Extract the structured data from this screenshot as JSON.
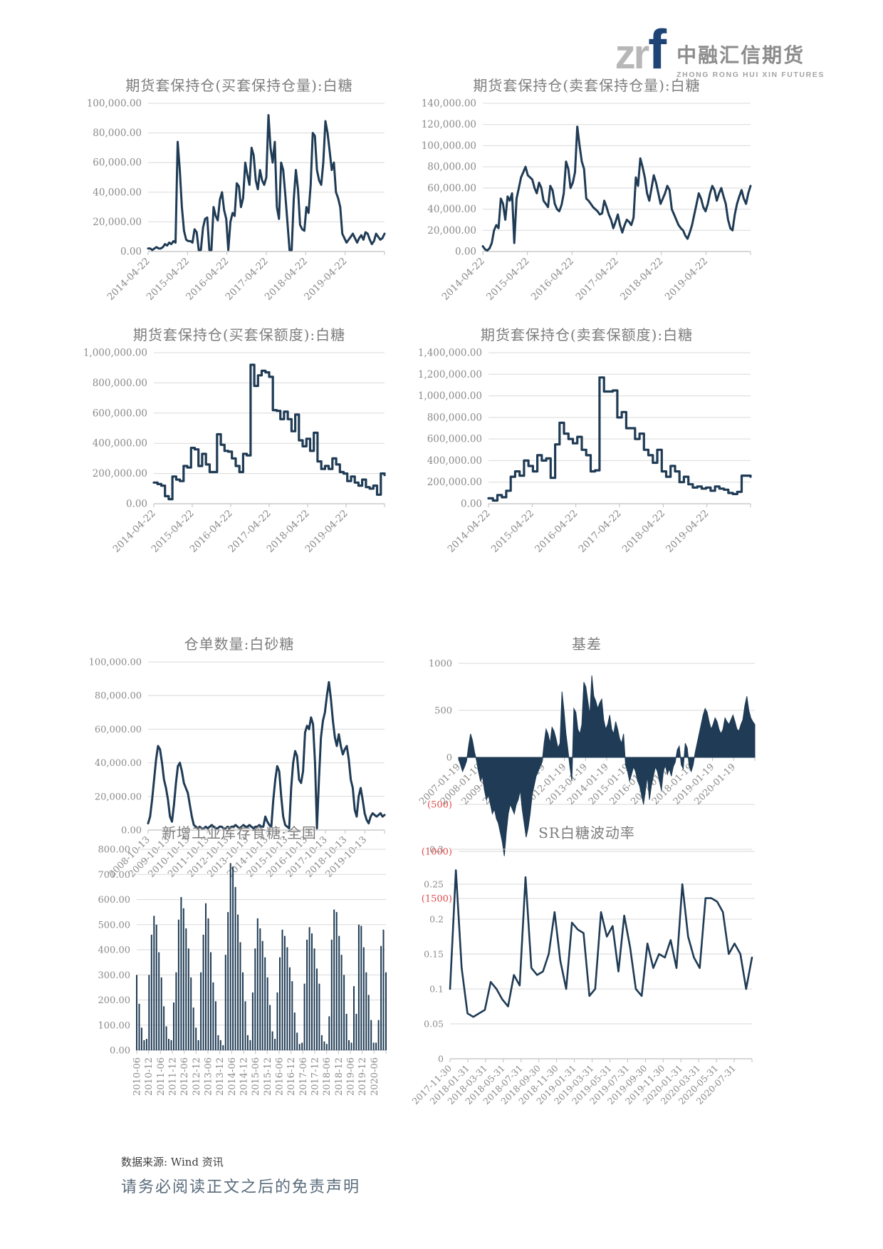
{
  "logo": {
    "zr": "zr",
    "f": "f",
    "cn": "中融汇信期货",
    "en": "ZHONG RONG HUI XIN FUTURES"
  },
  "footer": {
    "source": "数据来源: Wind 资讯",
    "disclaimer": "请务必阅读正文之后的免责声明"
  },
  "colors": {
    "series": "#1f3b55",
    "grid": "#d9d9d9",
    "axis": "#bfbfbf",
    "tick_label": "#8a8a8a",
    "negative_label": "#e04b4b",
    "title": "#7d7d7d"
  },
  "chart_data": [
    {
      "type": "line",
      "title": "期货套保持仓(买套保持仓量):白糖",
      "xlabel": "",
      "ylabel": "",
      "grid": true,
      "legend": "none",
      "ylim": [
        0,
        100000
      ],
      "y_ticks": [
        {
          "v": 0,
          "t": "0.00"
        },
        {
          "v": 20000,
          "t": "20,000.00"
        },
        {
          "v": 40000,
          "t": "40,000.00"
        },
        {
          "v": 60000,
          "t": "60,000.00"
        },
        {
          "v": 80000,
          "t": "80,000.00"
        },
        {
          "v": 100000,
          "t": "100,000.00"
        }
      ],
      "x_labels": [
        "2014-04-22",
        "2015-04-22",
        "2016-04-22",
        "2017-04-22",
        "2018-04-22",
        "2019-04-22"
      ],
      "values": [
        2000,
        2000,
        1000,
        2000,
        3000,
        2000,
        2000,
        3000,
        5000,
        4000,
        6000,
        5000,
        7000,
        6000,
        74000,
        55000,
        30000,
        14000,
        8000,
        7000,
        7000,
        6000,
        15000,
        13000,
        1000,
        1000,
        16000,
        22000,
        23000,
        1000,
        1000,
        30000,
        24000,
        21000,
        35000,
        40000,
        28000,
        22000,
        1000,
        20000,
        26000,
        24000,
        46000,
        44000,
        30000,
        36000,
        60000,
        52000,
        45000,
        70000,
        65000,
        48000,
        42000,
        55000,
        48000,
        45000,
        50000,
        92000,
        70000,
        60000,
        74000,
        30000,
        22000,
        60000,
        55000,
        38000,
        20000,
        1000,
        1000,
        35000,
        55000,
        42000,
        18000,
        15000,
        14000,
        30000,
        26000,
        45000,
        80000,
        78000,
        55000,
        48000,
        45000,
        60000,
        88000,
        80000,
        68000,
        55000,
        60000,
        40000,
        36000,
        30000,
        12000,
        9000,
        6000,
        8000,
        10000,
        12000,
        9000,
        6000,
        9000,
        11000,
        8000,
        13000,
        12000,
        8000,
        5000,
        7000,
        12000,
        10000,
        8000,
        9000,
        12000
      ]
    },
    {
      "type": "line",
      "title": "期货套保持仓(卖套保持仓量):白糖",
      "xlabel": "",
      "ylabel": "",
      "grid": true,
      "legend": "none",
      "ylim": [
        0,
        140000
      ],
      "y_ticks": [
        {
          "v": 0,
          "t": "0.00"
        },
        {
          "v": 20000,
          "t": "20,000.00"
        },
        {
          "v": 40000,
          "t": "40,000.00"
        },
        {
          "v": 60000,
          "t": "60,000.00"
        },
        {
          "v": 80000,
          "t": "80,000.00"
        },
        {
          "v": 100000,
          "t": "100,000.00"
        },
        {
          "v": 120000,
          "t": "120,000.00"
        },
        {
          "v": 140000,
          "t": "140,000.00"
        }
      ],
      "x_labels": [
        "2014-04-22",
        "2015-04-22",
        "2016-04-22",
        "2017-04-22",
        "2018-04-22",
        "2019-04-22"
      ],
      "values": [
        5000,
        2000,
        1000,
        3000,
        8000,
        20000,
        25000,
        22000,
        50000,
        45000,
        30000,
        52000,
        48000,
        55000,
        8000,
        50000,
        60000,
        70000,
        75000,
        80000,
        72000,
        70000,
        68000,
        60000,
        55000,
        65000,
        60000,
        48000,
        45000,
        42000,
        62000,
        58000,
        45000,
        40000,
        38000,
        44000,
        55000,
        85000,
        78000,
        60000,
        65000,
        75000,
        118000,
        100000,
        85000,
        78000,
        50000,
        48000,
        45000,
        42000,
        40000,
        38000,
        35000,
        36000,
        48000,
        42000,
        35000,
        30000,
        22000,
        28000,
        35000,
        25000,
        18000,
        25000,
        30000,
        28000,
        25000,
        32000,
        70000,
        62000,
        88000,
        80000,
        70000,
        55000,
        48000,
        60000,
        72000,
        65000,
        55000,
        45000,
        50000,
        55000,
        62000,
        58000,
        40000,
        35000,
        30000,
        25000,
        22000,
        20000,
        15000,
        12000,
        18000,
        25000,
        35000,
        45000,
        55000,
        50000,
        42000,
        38000,
        45000,
        55000,
        62000,
        58000,
        48000,
        55000,
        60000,
        52000,
        45000,
        30000,
        22000,
        20000,
        35000,
        45000,
        52000,
        58000,
        50000,
        45000,
        55000,
        62000
      ]
    },
    {
      "type": "line",
      "step": true,
      "title": "期货套保持仓(买套保额度):白糖",
      "xlabel": "",
      "ylabel": "",
      "grid": true,
      "legend": "none",
      "ylim": [
        0,
        1000000
      ],
      "y_ticks": [
        {
          "v": 0,
          "t": "0.00"
        },
        {
          "v": 200000,
          "t": "200,000.00"
        },
        {
          "v": 400000,
          "t": "400,000.00"
        },
        {
          "v": 600000,
          "t": "600,000.00"
        },
        {
          "v": 800000,
          "t": "800,000.00"
        },
        {
          "v": 1000000,
          "t": "1,000,000.00"
        }
      ],
      "x_labels": [
        "2014-04-22",
        "2015-04-22",
        "2016-04-22",
        "2017-04-22",
        "2018-04-22",
        "2019-04-22"
      ],
      "values": [
        140000,
        130000,
        120000,
        50000,
        30000,
        180000,
        160000,
        150000,
        250000,
        240000,
        370000,
        360000,
        250000,
        330000,
        260000,
        210000,
        210000,
        460000,
        390000,
        350000,
        345000,
        300000,
        250000,
        210000,
        330000,
        320000,
        920000,
        780000,
        850000,
        880000,
        870000,
        840000,
        620000,
        615000,
        560000,
        610000,
        560000,
        480000,
        590000,
        420000,
        380000,
        430000,
        350000,
        470000,
        280000,
        230000,
        250000,
        230000,
        300000,
        260000,
        210000,
        200000,
        150000,
        180000,
        140000,
        120000,
        160000,
        110000,
        100000,
        120000,
        60000,
        200000,
        190000
      ]
    },
    {
      "type": "line",
      "step": true,
      "title": "期货套保持仓(卖套保额度):白糖",
      "xlabel": "",
      "ylabel": "",
      "grid": true,
      "legend": "none",
      "ylim": [
        0,
        1400000
      ],
      "y_ticks": [
        {
          "v": 0,
          "t": "0.00"
        },
        {
          "v": 200000,
          "t": "200,000.00"
        },
        {
          "v": 400000,
          "t": "400,000.00"
        },
        {
          "v": 600000,
          "t": "600,000.00"
        },
        {
          "v": 800000,
          "t": "800,000.00"
        },
        {
          "v": 1000000,
          "t": "1,000,000.00"
        },
        {
          "v": 1200000,
          "t": "1,200,000.00"
        },
        {
          "v": 1400000,
          "t": "1,400,000.00"
        }
      ],
      "x_labels": [
        "2014-04-22",
        "2015-04-22",
        "2016-04-22",
        "2017-04-22",
        "2018-04-22",
        "2019-04-22"
      ],
      "values": [
        50000,
        30000,
        80000,
        60000,
        120000,
        250000,
        300000,
        260000,
        400000,
        350000,
        300000,
        450000,
        400000,
        420000,
        240000,
        550000,
        750000,
        650000,
        600000,
        560000,
        620000,
        500000,
        450000,
        300000,
        310000,
        1170000,
        1040000,
        1040000,
        1050000,
        800000,
        850000,
        700000,
        700000,
        600000,
        650000,
        500000,
        450000,
        380000,
        500000,
        300000,
        250000,
        350000,
        300000,
        200000,
        250000,
        180000,
        150000,
        160000,
        140000,
        150000,
        120000,
        160000,
        140000,
        130000,
        100000,
        90000,
        110000,
        260000,
        260000,
        250000
      ]
    },
    {
      "type": "line",
      "title": "仓单数量:白砂糖",
      "xlabel": "",
      "ylabel": "",
      "grid": true,
      "legend": "none",
      "ylim": [
        0,
        100000
      ],
      "y_ticks": [
        {
          "v": 0,
          "t": "0.00"
        },
        {
          "v": 20000,
          "t": "20,000.00"
        },
        {
          "v": 40000,
          "t": "40,000.00"
        },
        {
          "v": 60000,
          "t": "60,000.00"
        },
        {
          "v": 80000,
          "t": "80,000.00"
        },
        {
          "v": 100000,
          "t": "100,000.00"
        }
      ],
      "x_labels": [
        "2008-10-13",
        "2009-10-13",
        "2010-10-13",
        "2011-10-13",
        "2012-10-13",
        "2013-10-13",
        "2014-10-13",
        "2015-10-13",
        "2016-10-13",
        "2017-10-13",
        "2018-10-13",
        "2019-10-13"
      ],
      "values": [
        4000,
        8000,
        18000,
        30000,
        42000,
        50000,
        48000,
        40000,
        30000,
        25000,
        18000,
        8000,
        5000,
        15000,
        28000,
        38000,
        40000,
        35000,
        28000,
        25000,
        22000,
        15000,
        8000,
        3000,
        2000,
        1000,
        2000,
        1000,
        1000,
        2000,
        1000,
        2000,
        3000,
        2000,
        1000,
        1000,
        2000,
        2000,
        1000,
        1000,
        2000,
        1000,
        2000,
        2000,
        3000,
        2000,
        1000,
        2000,
        3000,
        2000,
        2000,
        3000,
        2000,
        1000,
        2000,
        2000,
        3000,
        2000,
        2000,
        8000,
        5000,
        3000,
        2000,
        18000,
        30000,
        38000,
        35000,
        20000,
        8000,
        3000,
        2000,
        1000,
        25000,
        40000,
        47000,
        44000,
        30000,
        28000,
        35000,
        58000,
        62000,
        60000,
        67000,
        63000,
        40000,
        1000,
        30000,
        55000,
        65000,
        70000,
        80000,
        88000,
        78000,
        65000,
        55000,
        50000,
        57000,
        50000,
        45000,
        48000,
        50000,
        42000,
        30000,
        25000,
        12000,
        8000,
        20000,
        25000,
        18000,
        10000,
        6000,
        4000,
        8000,
        10000,
        9000,
        8000,
        9000,
        10000,
        8000,
        9000
      ]
    },
    {
      "type": "area",
      "title": "基差",
      "xlabel": "",
      "ylabel": "",
      "grid": true,
      "legend": "none",
      "x_labels_at_zero": true,
      "ylim": [
        -1500,
        1000
      ],
      "y_ticks": [
        {
          "v": 1000,
          "t": "1000"
        },
        {
          "v": 500,
          "t": "500"
        },
        {
          "v": 0,
          "t": "0"
        },
        {
          "v": -500,
          "t": "(500)"
        },
        {
          "v": -1000,
          "t": "(1000)"
        },
        {
          "v": -1500,
          "t": "(1500)"
        }
      ],
      "x_labels": [
        "2007-01-19",
        "2008-01-19",
        "2009-01-19",
        "2010-01-19",
        "2011-01-19",
        "2012-01-19",
        "2013-01-19",
        "2014-01-19",
        "2015-01-19",
        "2016-01-19",
        "2017-01-19",
        "2018-01-19",
        "2019-01-19",
        "2020-01-19"
      ],
      "values": [
        -20,
        -80,
        -150,
        -100,
        -40,
        120,
        250,
        180,
        60,
        -30,
        -150,
        -250,
        -200,
        -350,
        -450,
        -400,
        -500,
        -600,
        -550,
        -650,
        -700,
        -800,
        -900,
        -1050,
        -800,
        -600,
        -500,
        -550,
        -600,
        -500,
        -450,
        -350,
        -550,
        -700,
        -850,
        -750,
        -600,
        -400,
        -300,
        -200,
        -150,
        -100,
        -50,
        150,
        300,
        250,
        150,
        320,
        280,
        200,
        100,
        150,
        700,
        500,
        250,
        80,
        -100,
        -250,
        520,
        480,
        300,
        250,
        350,
        800,
        750,
        600,
        450,
        870,
        650,
        600,
        520,
        580,
        620,
        400,
        300,
        350,
        450,
        300,
        250,
        380,
        300,
        200,
        150,
        250,
        -80,
        -150,
        -250,
        -180,
        -100,
        -150,
        -250,
        -300,
        -400,
        -500,
        -350,
        -200,
        -450,
        -300,
        -200,
        -100,
        -150,
        -250,
        -350,
        -150,
        -80,
        -180,
        -120,
        -200,
        -100,
        -50,
        80,
        120,
        -80,
        -120,
        150,
        100,
        -100,
        -150,
        -80,
        50,
        150,
        250,
        350,
        450,
        520,
        480,
        380,
        300,
        350,
        420,
        380,
        300,
        250,
        300,
        420,
        380,
        350,
        400,
        450,
        380,
        300,
        280,
        350,
        400,
        550,
        650,
        500,
        420,
        380,
        350
      ]
    },
    {
      "type": "bar",
      "title": "新增工业库存食糖:全国",
      "xlabel": "",
      "ylabel": "",
      "grid": true,
      "legend": "none",
      "ylim": [
        0,
        800
      ],
      "y_ticks": [
        {
          "v": 0,
          "t": "0.00"
        },
        {
          "v": 100,
          "t": "100.00"
        },
        {
          "v": 200,
          "t": "200.00"
        },
        {
          "v": 300,
          "t": "300.00"
        },
        {
          "v": 400,
          "t": "400.00"
        },
        {
          "v": 500,
          "t": "500.00"
        },
        {
          "v": 600,
          "t": "600.00"
        },
        {
          "v": 700,
          "t": "700.00"
        },
        {
          "v": 800,
          "t": "800.00"
        }
      ],
      "x_labels": [
        "2010-06",
        "2010-12",
        "2011-06",
        "2011-12",
        "2012-06",
        "2012-12",
        "2013-06",
        "2013-12",
        "2014-06",
        "2014-12",
        "2015-06",
        "2015-12",
        "2016-06",
        "2016-12",
        "2017-06",
        "2017-12",
        "2018-06",
        "2018-12",
        "2019-06",
        "2019-12",
        "2020-06"
      ],
      "values": [
        300,
        185,
        90,
        40,
        45,
        300,
        460,
        535,
        500,
        390,
        290,
        175,
        95,
        45,
        40,
        190,
        310,
        520,
        610,
        565,
        485,
        405,
        290,
        170,
        90,
        40,
        310,
        460,
        585,
        525,
        390,
        270,
        195,
        60,
        40,
        20,
        380,
        550,
        745,
        730,
        650,
        540,
        430,
        310,
        195,
        60,
        40,
        230,
        405,
        525,
        485,
        435,
        370,
        290,
        180,
        75,
        45,
        230,
        370,
        480,
        455,
        410,
        330,
        275,
        150,
        70,
        25,
        30,
        265,
        440,
        490,
        465,
        405,
        325,
        265,
        60,
        35,
        25,
        135,
        440,
        560,
        550,
        455,
        380,
        300,
        145,
        40,
        30,
        255,
        145,
        500,
        495,
        410,
        310,
        220,
        120,
        30,
        30,
        120,
        415,
        480,
        310
      ]
    },
    {
      "type": "line",
      "title": "SR白糖波动率",
      "xlabel": "",
      "ylabel": "",
      "grid": true,
      "legend": "none",
      "ylim": [
        0,
        0.3
      ],
      "y_ticks": [
        {
          "v": 0,
          "t": "0"
        },
        {
          "v": 0.05,
          "t": "0.05"
        },
        {
          "v": 0.1,
          "t": "0.1"
        },
        {
          "v": 0.15,
          "t": "0.15"
        },
        {
          "v": 0.2,
          "t": "0.2"
        },
        {
          "v": 0.25,
          "t": "0.25"
        },
        {
          "v": 0.3,
          "t": "0.3"
        }
      ],
      "x_labels": [
        "2017-11-30",
        "2018-01-31",
        "2018-03-31",
        "2018-05-31",
        "2018-07-31",
        "2018-09-30",
        "2018-11-30",
        "2019-01-31",
        "2019-03-31",
        "2019-05-31",
        "2019-07-31",
        "2019-09-30",
        "2019-11-30",
        "2020-01-31",
        "2020-03-31",
        "2020-05-31",
        "2020-07-31"
      ],
      "values": [
        0.1,
        0.27,
        0.13,
        0.065,
        0.06,
        0.065,
        0.07,
        0.11,
        0.1,
        0.085,
        0.075,
        0.12,
        0.105,
        0.26,
        0.13,
        0.12,
        0.125,
        0.15,
        0.21,
        0.14,
        0.1,
        0.195,
        0.185,
        0.18,
        0.09,
        0.1,
        0.21,
        0.175,
        0.19,
        0.125,
        0.205,
        0.16,
        0.1,
        0.09,
        0.165,
        0.13,
        0.15,
        0.145,
        0.17,
        0.13,
        0.25,
        0.175,
        0.145,
        0.13,
        0.23,
        0.23,
        0.225,
        0.21,
        0.15,
        0.165,
        0.15,
        0.1,
        0.145
      ]
    }
  ]
}
